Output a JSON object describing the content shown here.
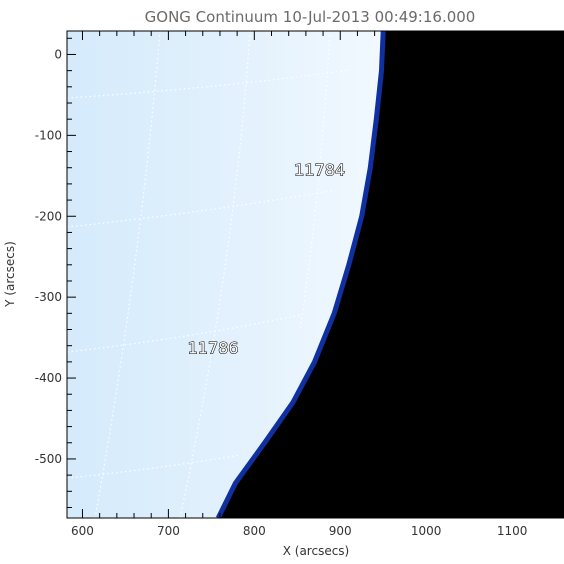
{
  "image": {
    "title": "GONG Continuum 10-Jul-2013 00:49:16.000",
    "x_axis_label": "X (arcsecs)",
    "y_axis_label": "Y (arcsecs)",
    "x_range": [
      582,
      1186
    ],
    "y_range": [
      -573,
      29
    ],
    "x_ticks": [
      600,
      700,
      800,
      900,
      1000,
      1100
    ],
    "y_ticks": [
      0,
      -100,
      -200,
      -300,
      -400,
      -500
    ],
    "limb_points": [
      [
        950,
        29
      ],
      [
        948,
        -20
      ],
      [
        942,
        -80
      ],
      [
        935,
        -140
      ],
      [
        925,
        -200
      ],
      [
        910,
        -260
      ],
      [
        893,
        -320
      ],
      [
        870,
        -380
      ],
      [
        845,
        -430
      ],
      [
        812,
        -480
      ],
      [
        778,
        -530
      ],
      [
        758,
        -573
      ]
    ],
    "colors": {
      "disk_light": "#e4f2fd",
      "disk_mid": "#cfe7fa",
      "limb": "#1030a0",
      "space": "#000000"
    },
    "active_regions": [
      {
        "label": "11784",
        "x": 876,
        "y": -142
      },
      {
        "label": "11786",
        "x": 752,
        "y": -362
      }
    ],
    "grid": true
  }
}
